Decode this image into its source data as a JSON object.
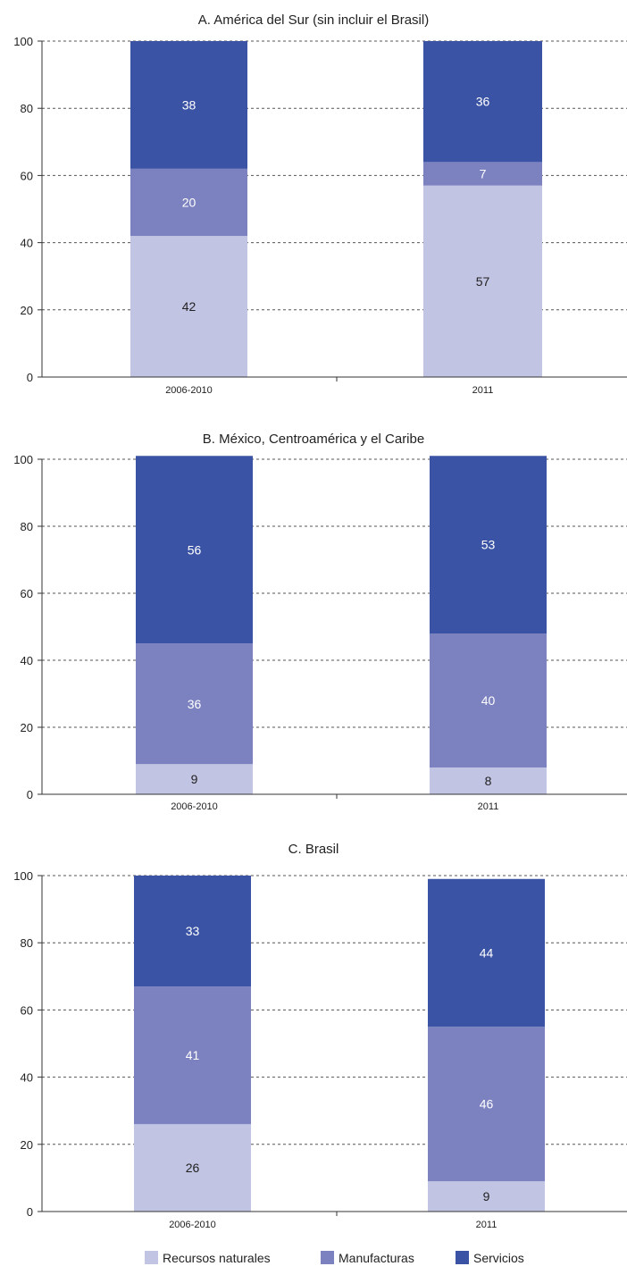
{
  "chart_data": [
    {
      "type": "bar",
      "stacked": true,
      "title": "A. América del Sur (sin incluir el Brasil)",
      "categories": [
        "2006-2010",
        "2011"
      ],
      "ylim": [
        0,
        100
      ],
      "yticks": [
        0,
        20,
        40,
        60,
        80,
        100
      ],
      "grid": true,
      "series": [
        {
          "name": "Recursos naturales",
          "values": [
            42,
            57
          ]
        },
        {
          "name": "Manufacturas",
          "values": [
            20,
            7
          ]
        },
        {
          "name": "Servicios",
          "values": [
            38,
            36
          ]
        }
      ]
    },
    {
      "type": "bar",
      "stacked": true,
      "title": "B. México, Centroamérica y el Caribe",
      "categories": [
        "2006-2010",
        "2011"
      ],
      "ylim": [
        0,
        100
      ],
      "yticks": [
        0,
        20,
        40,
        60,
        80,
        100
      ],
      "grid": true,
      "series": [
        {
          "name": "Recursos naturales",
          "values": [
            9,
            8
          ]
        },
        {
          "name": "Manufacturas",
          "values": [
            36,
            40
          ]
        },
        {
          "name": "Servicios",
          "values": [
            56,
            53
          ]
        }
      ]
    },
    {
      "type": "bar",
      "stacked": true,
      "title": "C. Brasil",
      "categories": [
        "2006-2010",
        "2011"
      ],
      "ylim": [
        0,
        100
      ],
      "yticks": [
        0,
        20,
        40,
        60,
        80,
        100
      ],
      "grid": true,
      "series": [
        {
          "name": "Recursos naturales",
          "values": [
            26,
            9
          ]
        },
        {
          "name": "Manufacturas",
          "values": [
            41,
            46
          ]
        },
        {
          "name": "Servicios",
          "values": [
            33,
            44
          ]
        }
      ]
    }
  ],
  "legend": {
    "position": "bottom",
    "items": [
      {
        "label": "Recursos naturales",
        "color": "#c2c4e3"
      },
      {
        "label": "Manufacturas",
        "color": "#7c81c0"
      },
      {
        "label": "Servicios",
        "color": "#3b53a4"
      }
    ]
  },
  "colors": {
    "grid": "#555555",
    "axis": "#333333",
    "label_dark": "#222222",
    "label_light": "#ffffff"
  }
}
